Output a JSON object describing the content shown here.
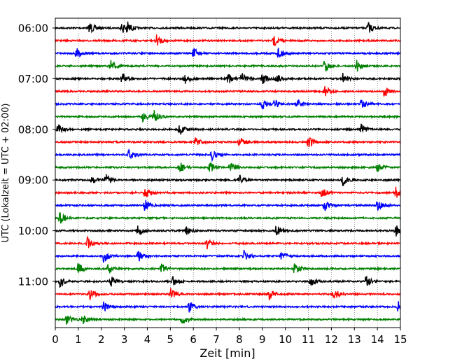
{
  "chart_data": {
    "type": "seismogram-helicorder",
    "xlabel": "Zeit  [min]",
    "ylabel": "UTC (Lokalzeit = UTC + 02:00)",
    "xlim": [
      0,
      15
    ],
    "x_ticks": [
      "0",
      "1",
      "2",
      "3",
      "4",
      "5",
      "6",
      "7",
      "8",
      "9",
      "10",
      "11",
      "12",
      "13",
      "14",
      "15"
    ],
    "y_tick_labels": [
      "06:00",
      "07:00",
      "08:00",
      "09:00",
      "10:00",
      "11:00"
    ],
    "row_interval_min": 15,
    "grid": "vertical dotted at each minute",
    "color_cycle": [
      "#000000",
      "#ff0000",
      "#0000ff",
      "#008000"
    ],
    "rows": [
      {
        "start": "06:00",
        "events": [
          1.5,
          2.9,
          3.1,
          13.6
        ]
      },
      {
        "start": "06:15",
        "events": [
          4.4,
          9.5
        ]
      },
      {
        "start": "06:30",
        "events": [
          0.9,
          6.0,
          9.7
        ]
      },
      {
        "start": "06:45",
        "events": [
          2.4,
          11.7,
          13.1
        ]
      },
      {
        "start": "07:00",
        "events": [
          2.9,
          5.6,
          7.5,
          8.1,
          9.0,
          9.6,
          12.5
        ]
      },
      {
        "start": "07:15",
        "events": [
          11.7,
          14.3
        ]
      },
      {
        "start": "07:30",
        "events": [
          9.0,
          9.5,
          10.5,
          13.3
        ]
      },
      {
        "start": "07:45",
        "events": [
          3.8,
          4.3
        ]
      },
      {
        "start": "08:00",
        "events": [
          0.1,
          5.4,
          13.3
        ]
      },
      {
        "start": "08:15",
        "events": [
          6.1,
          8.0,
          11.0
        ]
      },
      {
        "start": "08:30",
        "events": [
          3.2,
          6.8
        ]
      },
      {
        "start": "08:45",
        "events": [
          5.4,
          6.7,
          7.6,
          14.0
        ]
      },
      {
        "start": "09:00",
        "events": [
          1.6,
          2.2,
          8.0,
          12.5
        ]
      },
      {
        "start": "09:15",
        "events": [
          3.9,
          11.6,
          14.8
        ]
      },
      {
        "start": "09:30",
        "events": [
          3.9,
          11.7,
          14.0
        ]
      },
      {
        "start": "09:45",
        "events": [
          0.2
        ]
      },
      {
        "start": "10:00",
        "events": [
          3.6,
          5.7,
          9.6,
          14.8
        ]
      },
      {
        "start": "10:15",
        "events": [
          1.4,
          6.6
        ]
      },
      {
        "start": "10:30",
        "events": [
          2.1,
          3.6,
          8.2,
          9.8
        ]
      },
      {
        "start": "10:45",
        "events": [
          1.0,
          2.3,
          4.6,
          10.4
        ]
      },
      {
        "start": "11:00",
        "events": [
          0.2,
          2.4,
          5.1,
          11.1,
          13.5
        ]
      },
      {
        "start": "11:15",
        "events": [
          1.5,
          5.0,
          9.3,
          12.1
        ]
      },
      {
        "start": "11:30",
        "events": [
          2.1,
          5.8,
          14.9
        ]
      },
      {
        "start": "11:45",
        "events": [
          0.5,
          1.2,
          5.5
        ]
      }
    ]
  }
}
